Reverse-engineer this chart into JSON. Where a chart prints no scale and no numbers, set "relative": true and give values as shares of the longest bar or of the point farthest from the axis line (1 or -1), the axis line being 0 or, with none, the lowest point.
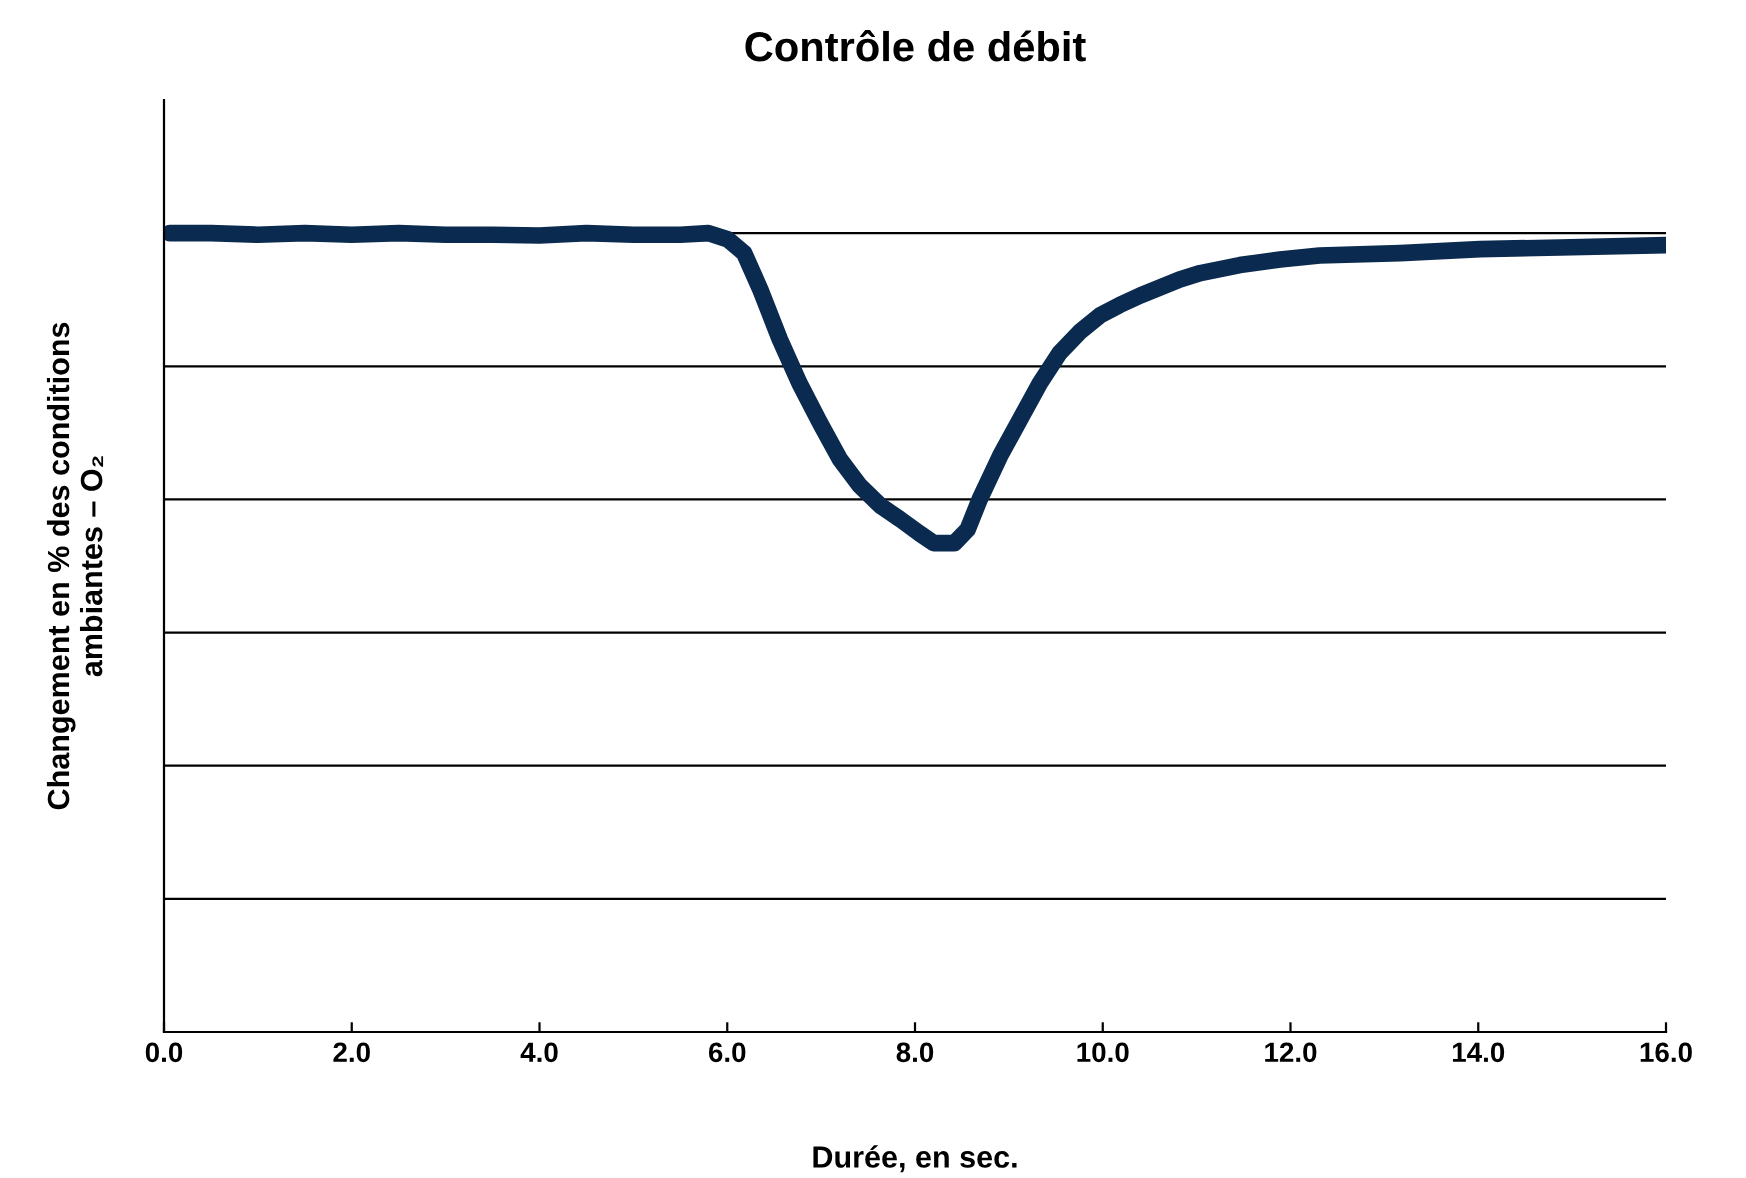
{
  "chart_data": {
    "type": "line",
    "title": "Contrôle de débit",
    "xlabel": "Durée, en sec.",
    "ylabel": "Changement en % des conditions\nambiantes – O₂",
    "relative": true,
    "grid": "y",
    "tick_labels": "x",
    "marker": "none",
    "line_style": "solid",
    "xlim": [
      0,
      16
    ],
    "xticks": [
      {
        "value": 0,
        "label": "0.0"
      },
      {
        "value": 2,
        "label": "2.0"
      },
      {
        "value": 4,
        "label": "4.0"
      },
      {
        "value": 6,
        "label": "6.0"
      },
      {
        "value": 8,
        "label": "8.0"
      },
      {
        "value": 10,
        "label": "10.0"
      },
      {
        "value": 12,
        "label": "12.0"
      },
      {
        "value": 14,
        "label": "14.0"
      },
      {
        "value": 16,
        "label": "16.0"
      }
    ],
    "series": [
      {
        "color": "#0b2a4f",
        "x": [
          0.06,
          0.5,
          1.0,
          1.5,
          2.0,
          2.5,
          3.0,
          3.5,
          4.0,
          4.5,
          5.0,
          5.5,
          5.8,
          6.01,
          6.18,
          6.35,
          6.56,
          6.77,
          6.99,
          7.2,
          7.41,
          7.63,
          7.84,
          8.05,
          8.2,
          8.42,
          8.56,
          8.69,
          8.91,
          9.12,
          9.33,
          9.54,
          9.76,
          9.97,
          10.18,
          10.4,
          10.61,
          10.82,
          11.04,
          11.46,
          11.89,
          12.31,
          13.17,
          14.02,
          14.87,
          16.0
        ],
        "values": [
          1.0,
          1.0,
          0.998,
          1.0,
          0.998,
          1.0,
          0.998,
          0.998,
          0.997,
          1.0,
          0.998,
          0.998,
          1.0,
          0.992,
          0.975,
          0.93,
          0.867,
          0.812,
          0.762,
          0.717,
          0.684,
          0.659,
          0.642,
          0.624,
          0.612,
          0.612,
          0.629,
          0.667,
          0.722,
          0.767,
          0.812,
          0.85,
          0.877,
          0.897,
          0.91,
          0.922,
          0.932,
          0.942,
          0.95,
          0.96,
          0.967,
          0.972,
          0.975,
          0.98,
          0.982,
          0.985
        ]
      }
    ]
  }
}
